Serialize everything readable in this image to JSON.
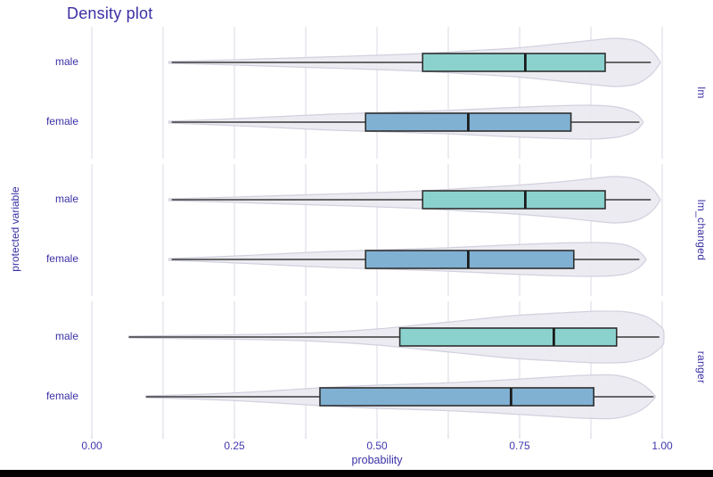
{
  "page": {
    "title": "Density plot",
    "background": "#ffffff",
    "text_color": "#3b30a5",
    "bottom_bar_color": "#000000"
  },
  "chart_data": {
    "type": "violin",
    "subtype": "violin-with-boxplot, horizontal, faceted by model",
    "title": "Density plot",
    "xlabel": "probability",
    "ylabel": "protected variable",
    "xlim": [
      0,
      1
    ],
    "x_tick_values": [
      0,
      0.25,
      0.5,
      0.75,
      1.0
    ],
    "x_tick_labels": [
      "0.00",
      "0.25",
      "0.50",
      "0.75",
      "1.00"
    ],
    "x_minor_step": 0.125,
    "grid": "vertical-only",
    "legend": "none",
    "colors": {
      "male_box": "#8bd2ce",
      "female_box": "#80b1d3",
      "violin_fill": "#e9e9f0",
      "violin_stroke": "#d1d1df",
      "grid": "#dfdfe8",
      "tick": "#d8d8e2",
      "whisker": "#3a3a3a",
      "box_stroke": "#2f2f2f",
      "median": "#1c1c1c"
    },
    "facets": [
      {
        "label": "lm",
        "rows": [
          {
            "group": "male",
            "box": {
              "whisker_low": 0.14,
              "q1": 0.58,
              "median": 0.76,
              "q3": 0.9,
              "whisker_high": 0.98
            },
            "violin_profile": [
              [
                0.135,
                1
              ],
              [
                0.2,
                2
              ],
              [
                0.3,
                4
              ],
              [
                0.4,
                6
              ],
              [
                0.5,
                8
              ],
              [
                0.58,
                10
              ],
              [
                0.66,
                13
              ],
              [
                0.74,
                16
              ],
              [
                0.82,
                21
              ],
              [
                0.88,
                25
              ],
              [
                0.92,
                27
              ],
              [
                0.955,
                24
              ],
              [
                0.98,
                14
              ],
              [
                0.995,
                2
              ]
            ]
          },
          {
            "group": "female",
            "box": {
              "whisker_low": 0.14,
              "q1": 0.48,
              "median": 0.66,
              "q3": 0.84,
              "whisker_high": 0.96
            },
            "violin_profile": [
              [
                0.135,
                1
              ],
              [
                0.22,
                3
              ],
              [
                0.32,
                6
              ],
              [
                0.42,
                9
              ],
              [
                0.52,
                11
              ],
              [
                0.62,
                13
              ],
              [
                0.72,
                16
              ],
              [
                0.8,
                18
              ],
              [
                0.87,
                19
              ],
              [
                0.92,
                17
              ],
              [
                0.95,
                11
              ],
              [
                0.965,
                2
              ]
            ]
          }
        ]
      },
      {
        "label": "lm_changed",
        "rows": [
          {
            "group": "male",
            "box": {
              "whisker_low": 0.14,
              "q1": 0.58,
              "median": 0.76,
              "q3": 0.9,
              "whisker_high": 0.98
            },
            "violin_profile": [
              [
                0.135,
                1
              ],
              [
                0.2,
                2
              ],
              [
                0.3,
                4
              ],
              [
                0.4,
                6
              ],
              [
                0.5,
                8
              ],
              [
                0.58,
                10
              ],
              [
                0.66,
                13
              ],
              [
                0.74,
                16
              ],
              [
                0.82,
                20
              ],
              [
                0.88,
                24
              ],
              [
                0.92,
                26
              ],
              [
                0.955,
                23
              ],
              [
                0.98,
                14
              ],
              [
                0.995,
                2
              ]
            ]
          },
          {
            "group": "female",
            "box": {
              "whisker_low": 0.14,
              "q1": 0.48,
              "median": 0.66,
              "q3": 0.845,
              "whisker_high": 0.96
            },
            "violin_profile": [
              [
                0.135,
                1
              ],
              [
                0.22,
                3
              ],
              [
                0.32,
                6
              ],
              [
                0.42,
                9
              ],
              [
                0.52,
                11
              ],
              [
                0.62,
                13
              ],
              [
                0.72,
                16
              ],
              [
                0.8,
                18
              ],
              [
                0.88,
                19
              ],
              [
                0.93,
                17
              ],
              [
                0.955,
                11
              ],
              [
                0.97,
                2
              ]
            ]
          }
        ]
      },
      {
        "label": "ranger",
        "rows": [
          {
            "group": "male",
            "box": {
              "whisker_low": 0.065,
              "q1": 0.54,
              "median": 0.81,
              "q3": 0.92,
              "whisker_high": 0.995
            },
            "violin_profile": [
              [
                0.065,
                1
              ],
              [
                0.18,
                2
              ],
              [
                0.3,
                3
              ],
              [
                0.4,
                5
              ],
              [
                0.5,
                9
              ],
              [
                0.58,
                14
              ],
              [
                0.66,
                19
              ],
              [
                0.74,
                24
              ],
              [
                0.82,
                27
              ],
              [
                0.89,
                29
              ],
              [
                0.94,
                28
              ],
              [
                0.975,
                22
              ],
              [
                1.0,
                10
              ],
              [
                1.003,
                2
              ]
            ]
          },
          {
            "group": "female",
            "box": {
              "whisker_low": 0.095,
              "q1": 0.4,
              "median": 0.735,
              "q3": 0.88,
              "whisker_high": 0.985
            },
            "violin_profile": [
              [
                0.095,
                1
              ],
              [
                0.2,
                3
              ],
              [
                0.3,
                6
              ],
              [
                0.4,
                10
              ],
              [
                0.5,
                13
              ],
              [
                0.6,
                15
              ],
              [
                0.7,
                18
              ],
              [
                0.78,
                21
              ],
              [
                0.86,
                24
              ],
              [
                0.92,
                24
              ],
              [
                0.96,
                16
              ],
              [
                0.985,
                3
              ]
            ]
          }
        ]
      }
    ]
  }
}
